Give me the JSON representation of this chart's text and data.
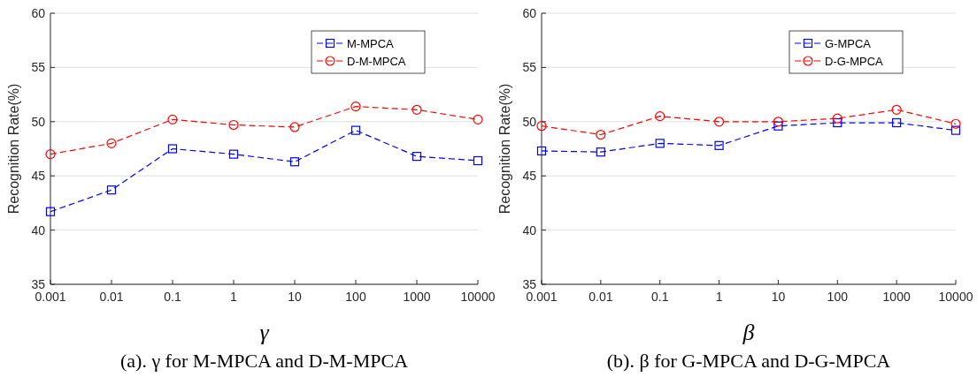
{
  "chart_data": [
    {
      "type": "line",
      "categories": [
        "0.001",
        "0.01",
        "0.1",
        "1",
        "10",
        "100",
        "1000",
        "10000"
      ],
      "xlabel": "γ",
      "ylabel": "Recognition Rate(%)",
      "ylim": [
        35,
        60
      ],
      "yticks": [
        35,
        40,
        45,
        50,
        55,
        60
      ],
      "grid": "y",
      "legend": "top right",
      "line_style": "dashed",
      "annotations": [
        "(a). γ for M-MPCA and D-M-MPCA"
      ],
      "series": [
        {
          "name": "M-MPCA",
          "color": "#0000ff",
          "marker": "square",
          "values": [
            41.7,
            43.7,
            47.5,
            47.0,
            46.3,
            49.2,
            46.8,
            46.4
          ]
        },
        {
          "name": "D-M-MPCA",
          "color": "#ff0000",
          "marker": "circle",
          "values": [
            47.0,
            48.0,
            50.2,
            49.7,
            49.5,
            51.4,
            51.1,
            50.2
          ]
        }
      ]
    },
    {
      "type": "line",
      "categories": [
        "0.001",
        "0.01",
        "0.1",
        "1",
        "10",
        "100",
        "1000",
        "10000"
      ],
      "xlabel": "β",
      "ylabel": "Recognition Rate(%)",
      "ylim": [
        35,
        60
      ],
      "yticks": [
        35,
        40,
        45,
        50,
        55,
        60
      ],
      "grid": "y",
      "legend": "top right",
      "line_style": "dashed",
      "annotations": [
        "(b). β for G-MPCA and D-G-MPCA"
      ],
      "series": [
        {
          "name": "G-MPCA",
          "color": "#0000ff",
          "marker": "square",
          "values": [
            47.3,
            47.2,
            48.0,
            47.8,
            49.6,
            49.9,
            49.9,
            49.2
          ]
        },
        {
          "name": "D-G-MPCA",
          "color": "#ff0000",
          "marker": "circle",
          "values": [
            49.6,
            48.8,
            50.5,
            50.0,
            50.0,
            50.3,
            51.1,
            49.8
          ]
        }
      ]
    }
  ]
}
